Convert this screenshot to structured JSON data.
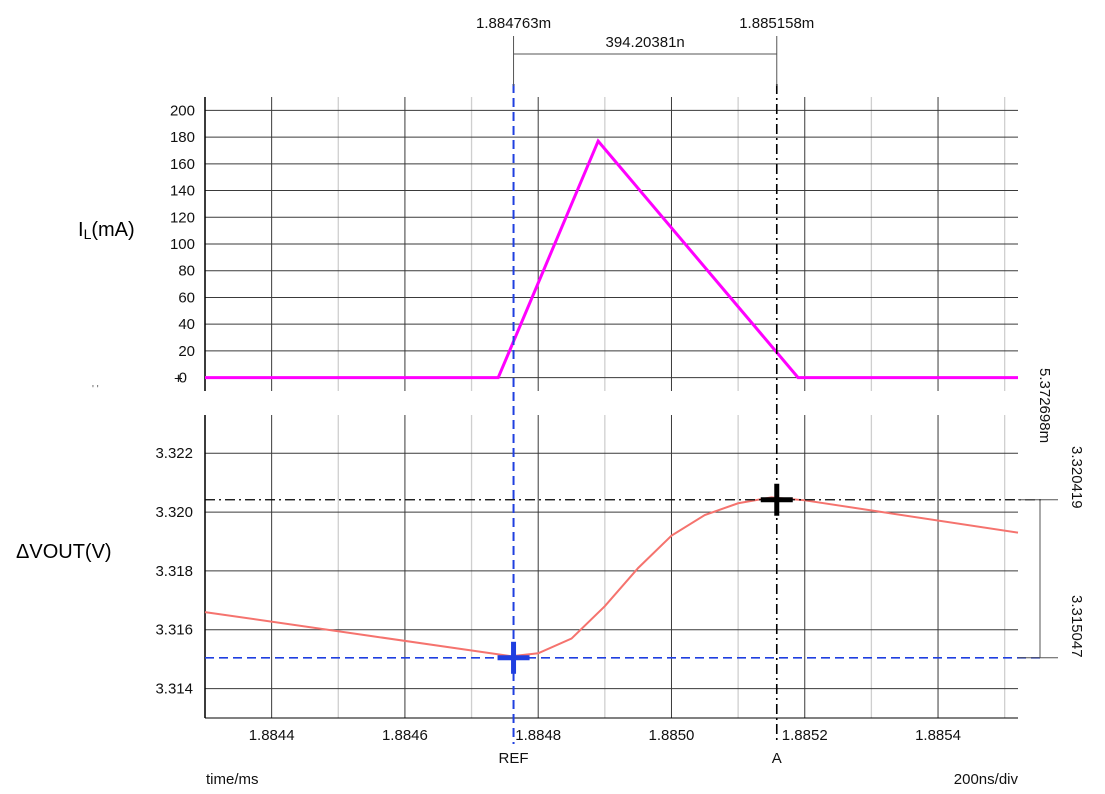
{
  "chart_data": [
    {
      "id": "il",
      "type": "line",
      "ylabel_main": "I",
      "ylabel_sub": "L",
      "ylabel_unit": "(mA)",
      "ylim": [
        -10,
        210
      ],
      "yticks": [
        0,
        20,
        40,
        60,
        80,
        100,
        120,
        140,
        160,
        180,
        200
      ],
      "ytick_labels": [
        "0",
        "20",
        "40",
        "60",
        "80",
        "100",
        "120",
        "140",
        "160",
        "180",
        "200"
      ],
      "zero_marker": "+",
      "grid": true,
      "series": [
        {
          "name": "IL",
          "color": "#ff00ff",
          "x": [
            1.8843,
            1.88474,
            1.88489,
            1.88519,
            1.88552
          ],
          "y": [
            0,
            0,
            177,
            0,
            0
          ]
        }
      ]
    },
    {
      "id": "vout",
      "type": "line",
      "ylabel": "ΔVOUT(V)",
      "ylim": [
        3.313,
        3.3233
      ],
      "yticks": [
        3.314,
        3.316,
        3.318,
        3.32,
        3.322
      ],
      "ytick_labels": [
        "3.314",
        "3.316",
        "3.318",
        "3.320",
        "3.322"
      ],
      "grid": true,
      "series": [
        {
          "name": "VOUT",
          "color": "#f5736e",
          "x": [
            1.8843,
            1.88476,
            1.8848,
            1.88485,
            1.8849,
            1.88495,
            1.885,
            1.88505,
            1.8851,
            1.88515,
            1.8852,
            1.88552
          ],
          "y": [
            3.3166,
            3.3151,
            3.3152,
            3.3157,
            3.3168,
            3.3181,
            3.3192,
            3.3199,
            3.3203,
            3.3205,
            3.3204,
            3.3193
          ]
        }
      ],
      "cursors": [
        {
          "name": "REF",
          "x": 1.884763,
          "y": 3.315047,
          "color": "#1f3fe0"
        },
        {
          "name": "A",
          "x": 1.885158,
          "y": 3.320419,
          "color": "#000000"
        }
      ]
    }
  ],
  "x_axis": {
    "xlim": [
      1.8843,
      1.88552
    ],
    "xticks": [
      1.8844,
      1.8846,
      1.8848,
      1.885,
      1.8852,
      1.8854
    ],
    "xtick_labels": [
      "1.8844",
      "1.8846",
      "1.8848",
      "1.8850",
      "1.8852",
      "1.8854"
    ],
    "minor_step": 0.0001,
    "label": "time/ms",
    "scale_label": "200ns/div"
  },
  "measurements": {
    "ref_time": "1.884763m",
    "a_time": "1.885158m",
    "delta_time": "394.20381n",
    "ref_value": "3.315047",
    "a_value": "3.320419",
    "delta_value": "5.372698m",
    "ref_label": "REF",
    "a_label": "A"
  },
  "colors": {
    "grid_major": "#3a3a3a",
    "grid_minor": "#cfcfcf",
    "ref_cursor": "#1f3fe0",
    "a_cursor": "#000000"
  }
}
